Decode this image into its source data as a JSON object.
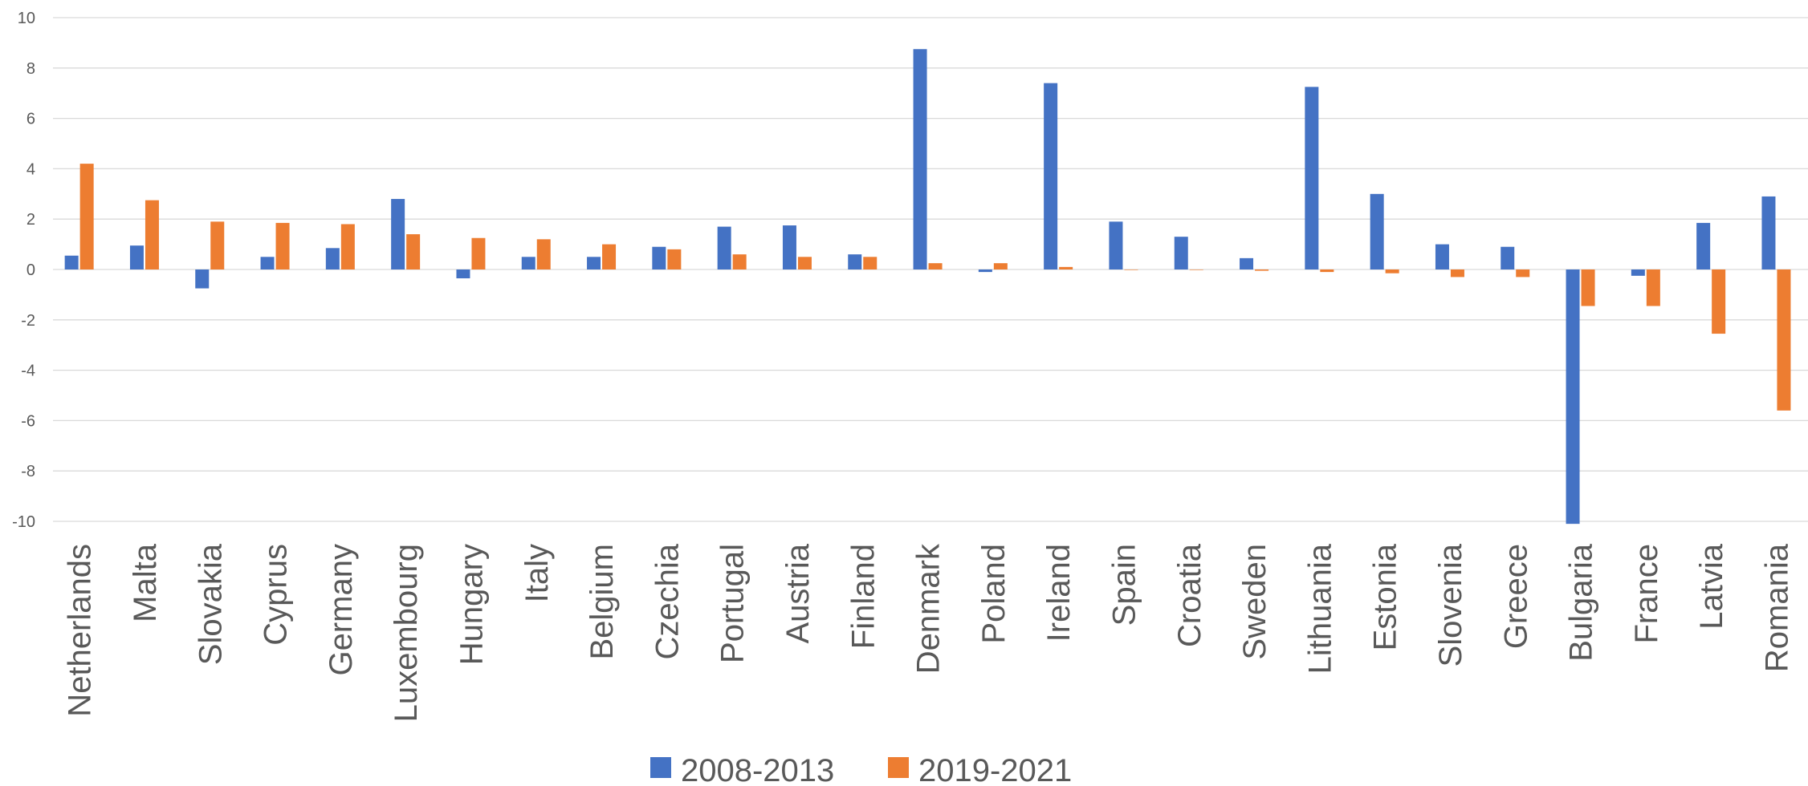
{
  "chart_data": {
    "type": "bar",
    "title": "",
    "xlabel": "",
    "ylabel": "",
    "ylim": [
      -10,
      10
    ],
    "yticks": [
      10,
      8,
      6,
      4,
      2,
      0,
      -2,
      -4,
      -6,
      -8,
      -10
    ],
    "grid": true,
    "legend_position": "bottom",
    "categories": [
      "Netherlands",
      "Malta",
      "Slovakia",
      "Cyprus",
      "Germany",
      "Luxembourg",
      "Hungary",
      "Italy",
      "Belgium",
      "Czechia",
      "Portugal",
      "Austria",
      "Finland",
      "Denmark",
      "Poland",
      "Ireland",
      "Spain",
      "Croatia",
      "Sweden",
      "Lithuania",
      "Estonia",
      "Slovenia",
      "Greece",
      "Bulgaria",
      "France",
      "Latvia",
      "Romania"
    ],
    "series": [
      {
        "name": "2008-2013",
        "color": "#4472C4",
        "values": [
          0.55,
          0.95,
          -0.75,
          0.5,
          0.85,
          2.8,
          -0.35,
          0.5,
          0.5,
          0.9,
          1.7,
          1.75,
          0.6,
          8.75,
          -0.1,
          7.4,
          1.9,
          1.3,
          0.45,
          7.25,
          3.0,
          1.0,
          0.9,
          -10.1,
          -0.25,
          1.85,
          2.9
        ]
      },
      {
        "name": "2019-2021",
        "color": "#ED7D31",
        "values": [
          4.2,
          2.75,
          1.9,
          1.85,
          1.8,
          1.4,
          1.25,
          1.2,
          1.0,
          0.8,
          0.6,
          0.5,
          0.5,
          0.25,
          0.25,
          0.1,
          0.0,
          0.0,
          -0.05,
          -0.1,
          -0.15,
          -0.3,
          -0.3,
          -1.45,
          -1.45,
          -2.55,
          -5.6
        ]
      }
    ]
  }
}
